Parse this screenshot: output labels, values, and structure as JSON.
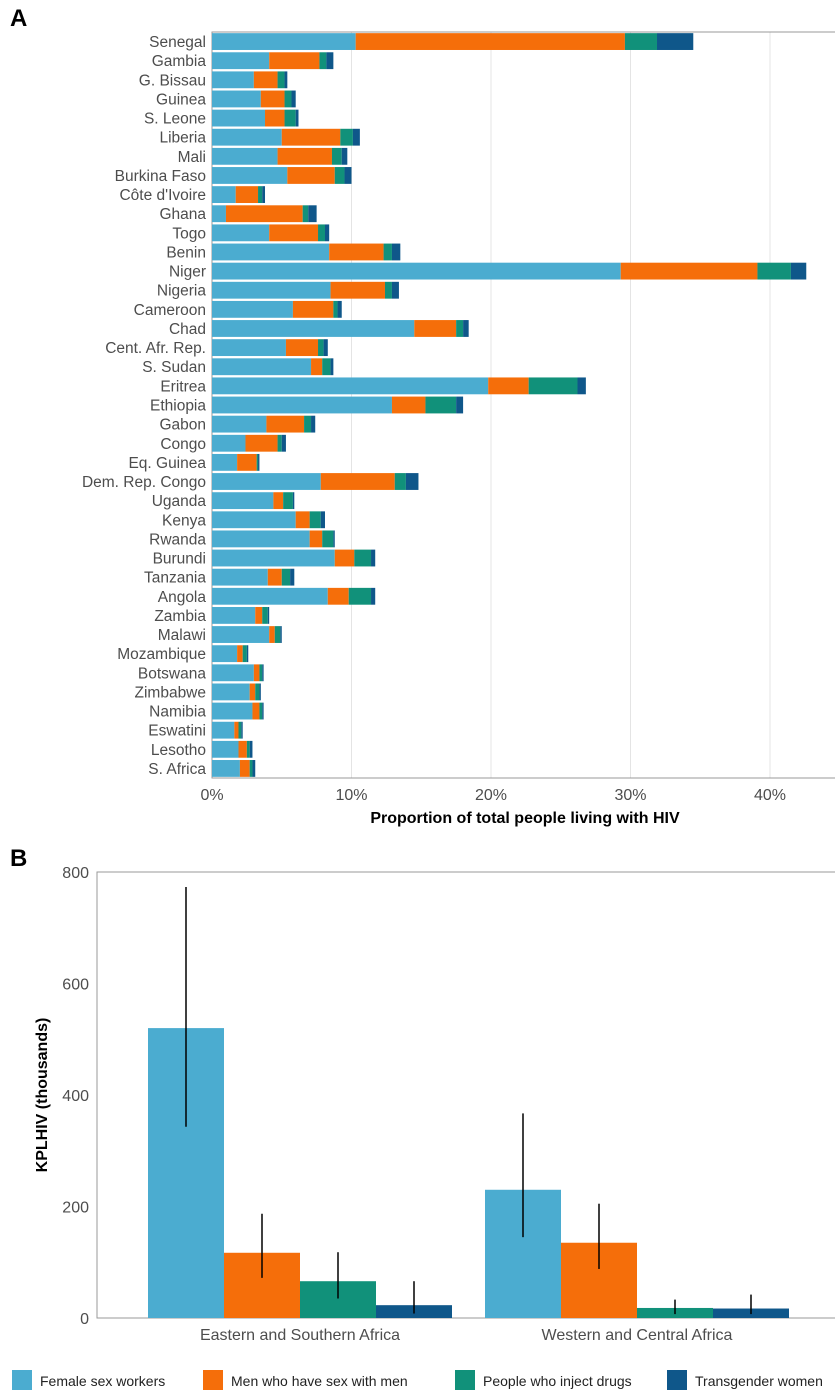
{
  "colors": {
    "fsw": "#4bacd0",
    "msm": "#f56e0a",
    "pwid": "#11917a",
    "tgw": "#0f578a",
    "grid": "#e4e4e4",
    "axis": "#999999"
  },
  "legend": {
    "items": [
      {
        "key": "fsw",
        "label": "Female sex workers"
      },
      {
        "key": "msm",
        "label": "Men who have sex with men"
      },
      {
        "key": "pwid",
        "label": "People who inject drugs"
      },
      {
        "key": "tgw",
        "label": "Transgender women"
      }
    ]
  },
  "chart_data": [
    {
      "panel": "A",
      "type": "bar",
      "orientation": "horizontal",
      "stacked": true,
      "xlabel": "Proportion of total people living with HIV",
      "xlim": [
        0,
        43
      ],
      "xticks": [
        0,
        10,
        20,
        30,
        40
      ],
      "xtick_labels": [
        "0%",
        "10%",
        "20%",
        "30%",
        "40%"
      ],
      "grid": true,
      "categories": [
        "Senegal",
        "Gambia",
        "G. Bissau",
        "Guinea",
        "S. Leone",
        "Liberia",
        "Mali",
        "Burkina Faso",
        "Côte d'Ivoire",
        "Ghana",
        "Togo",
        "Benin",
        "Niger",
        "Nigeria",
        "Cameroon",
        "Chad",
        "Cent. Afr. Rep.",
        "S. Sudan",
        "Eritrea",
        "Ethiopia",
        "Gabon",
        "Congo",
        "Eq. Guinea",
        "Dem. Rep. Congo",
        "Uganda",
        "Kenya",
        "Rwanda",
        "Burundi",
        "Tanzania",
        "Angola",
        "Zambia",
        "Malawi",
        "Mozambique",
        "Botswana",
        "Zimbabwe",
        "Namibia",
        "Eswatini",
        "Lesotho",
        "S. Africa"
      ],
      "series": [
        {
          "name": "Female sex workers",
          "key": "fsw",
          "values": [
            10.3,
            4.1,
            3.0,
            3.5,
            3.8,
            5.0,
            4.7,
            5.4,
            1.7,
            1.0,
            4.1,
            8.4,
            29.3,
            8.5,
            5.8,
            14.5,
            5.3,
            7.1,
            19.8,
            12.9,
            3.9,
            2.4,
            1.8,
            7.8,
            4.4,
            6.0,
            7.0,
            8.8,
            4.0,
            8.3,
            3.1,
            4.1,
            1.8,
            3.0,
            2.7,
            2.9,
            1.6,
            1.9,
            2.0
          ]
        },
        {
          "name": "Men who have sex with men",
          "key": "msm",
          "values": [
            19.3,
            3.6,
            1.7,
            1.7,
            1.4,
            4.2,
            3.9,
            3.4,
            1.6,
            5.5,
            3.5,
            3.9,
            9.8,
            3.9,
            2.9,
            3.0,
            2.3,
            0.8,
            2.9,
            2.4,
            2.7,
            2.3,
            1.4,
            5.3,
            0.7,
            1.0,
            0.9,
            1.4,
            1.0,
            1.5,
            0.5,
            0.4,
            0.4,
            0.4,
            0.4,
            0.5,
            0.3,
            0.6,
            0.7
          ]
        },
        {
          "name": "People who inject drugs",
          "key": "pwid",
          "values": [
            2.3,
            0.5,
            0.5,
            0.5,
            0.8,
            0.9,
            0.7,
            0.7,
            0.3,
            0.4,
            0.5,
            0.6,
            2.4,
            0.5,
            0.3,
            0.5,
            0.4,
            0.6,
            3.5,
            2.2,
            0.5,
            0.3,
            0.1,
            0.8,
            0.7,
            0.8,
            0.8,
            1.2,
            0.6,
            1.6,
            0.4,
            0.4,
            0.3,
            0.2,
            0.3,
            0.2,
            0.2,
            0.2,
            0.2
          ]
        },
        {
          "name": "Transgender women",
          "key": "tgw",
          "values": [
            2.6,
            0.5,
            0.2,
            0.3,
            0.2,
            0.5,
            0.4,
            0.5,
            0.2,
            0.6,
            0.3,
            0.6,
            1.1,
            0.5,
            0.3,
            0.4,
            0.3,
            0.2,
            0.6,
            0.5,
            0.3,
            0.3,
            0.1,
            0.9,
            0.1,
            0.3,
            0.1,
            0.3,
            0.3,
            0.3,
            0.1,
            0.1,
            0.1,
            0.1,
            0.1,
            0.1,
            0.1,
            0.2,
            0.2
          ]
        }
      ]
    },
    {
      "panel": "B",
      "type": "bar",
      "orientation": "vertical",
      "grouped": true,
      "ylabel": "KPLHIV (thousands)",
      "ylim": [
        0,
        800
      ],
      "yticks": [
        0,
        200,
        400,
        600,
        800
      ],
      "categories": [
        "Eastern and Southern Africa",
        "Western and Central Africa"
      ],
      "series": [
        {
          "name": "Female sex workers",
          "key": "fsw",
          "values": [
            520,
            230
          ],
          "lower": [
            343,
            145
          ],
          "upper": [
            773,
            367
          ]
        },
        {
          "name": "Men who have sex with men",
          "key": "msm",
          "values": [
            117,
            135
          ],
          "lower": [
            72,
            88
          ],
          "upper": [
            187,
            205
          ]
        },
        {
          "name": "People who inject drugs",
          "key": "pwid",
          "values": [
            66,
            18
          ],
          "lower": [
            35,
            7
          ],
          "upper": [
            118,
            33
          ]
        },
        {
          "name": "Transgender women",
          "key": "tgw",
          "values": [
            23,
            17
          ],
          "lower": [
            8,
            7
          ],
          "upper": [
            66,
            42
          ]
        }
      ]
    }
  ]
}
